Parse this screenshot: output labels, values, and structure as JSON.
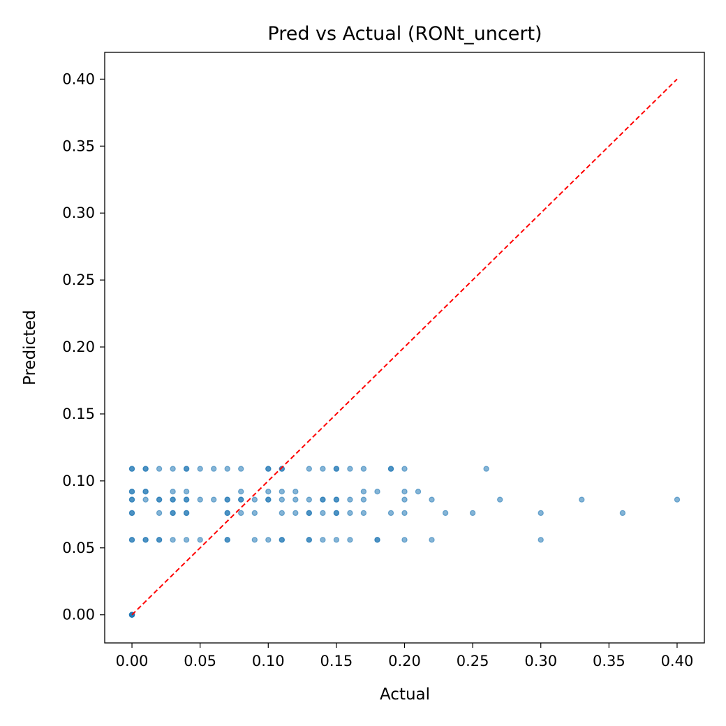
{
  "chart_data": {
    "type": "scatter",
    "title": "Pred vs Actual (RONt_uncert)",
    "xlabel": "Actual",
    "ylabel": "Predicted",
    "xlim": [
      -0.02,
      0.42
    ],
    "ylim": [
      -0.021,
      0.42
    ],
    "xticks": [
      "0.00",
      "0.05",
      "0.10",
      "0.15",
      "0.20",
      "0.25",
      "0.30",
      "0.35",
      "0.40"
    ],
    "yticks": [
      "0.00",
      "0.05",
      "0.10",
      "0.15",
      "0.20",
      "0.25",
      "0.30",
      "0.35",
      "0.40"
    ],
    "point_color": "#1f77b4",
    "reference_line": {
      "from": [
        0,
        0
      ],
      "to": [
        0.4,
        0.4
      ],
      "color": "#ff0000",
      "style": "dashed"
    },
    "grid": false,
    "series": [
      {
        "points": [
          [
            0.0,
            0.0
          ],
          [
            0.0,
            0.0
          ],
          [
            0.0,
            0.0
          ],
          [
            0.0,
            0.0
          ],
          [
            0.0,
            0.0
          ],
          [
            0.0,
            0.056
          ],
          [
            0.0,
            0.056
          ],
          [
            0.0,
            0.076
          ],
          [
            0.0,
            0.076
          ],
          [
            0.0,
            0.086
          ],
          [
            0.0,
            0.086
          ],
          [
            0.0,
            0.092
          ],
          [
            0.0,
            0.092
          ],
          [
            0.0,
            0.109
          ],
          [
            0.0,
            0.109
          ],
          [
            0.01,
            0.056
          ],
          [
            0.01,
            0.056
          ],
          [
            0.01,
            0.086
          ],
          [
            0.01,
            0.092
          ],
          [
            0.01,
            0.092
          ],
          [
            0.01,
            0.109
          ],
          [
            0.01,
            0.109
          ],
          [
            0.02,
            0.056
          ],
          [
            0.02,
            0.056
          ],
          [
            0.02,
            0.076
          ],
          [
            0.02,
            0.086
          ],
          [
            0.02,
            0.086
          ],
          [
            0.02,
            0.109
          ],
          [
            0.03,
            0.056
          ],
          [
            0.03,
            0.076
          ],
          [
            0.03,
            0.076
          ],
          [
            0.03,
            0.086
          ],
          [
            0.03,
            0.086
          ],
          [
            0.03,
            0.092
          ],
          [
            0.03,
            0.109
          ],
          [
            0.04,
            0.056
          ],
          [
            0.04,
            0.076
          ],
          [
            0.04,
            0.076
          ],
          [
            0.04,
            0.086
          ],
          [
            0.04,
            0.086
          ],
          [
            0.04,
            0.092
          ],
          [
            0.04,
            0.109
          ],
          [
            0.04,
            0.109
          ],
          [
            0.05,
            0.056
          ],
          [
            0.05,
            0.086
          ],
          [
            0.05,
            0.109
          ],
          [
            0.06,
            0.086
          ],
          [
            0.06,
            0.109
          ],
          [
            0.07,
            0.056
          ],
          [
            0.07,
            0.056
          ],
          [
            0.07,
            0.076
          ],
          [
            0.07,
            0.076
          ],
          [
            0.07,
            0.086
          ],
          [
            0.07,
            0.086
          ],
          [
            0.07,
            0.109
          ],
          [
            0.08,
            0.076
          ],
          [
            0.08,
            0.086
          ],
          [
            0.08,
            0.086
          ],
          [
            0.08,
            0.092
          ],
          [
            0.08,
            0.109
          ],
          [
            0.09,
            0.056
          ],
          [
            0.09,
            0.076
          ],
          [
            0.09,
            0.086
          ],
          [
            0.1,
            0.056
          ],
          [
            0.1,
            0.086
          ],
          [
            0.1,
            0.086
          ],
          [
            0.1,
            0.092
          ],
          [
            0.1,
            0.109
          ],
          [
            0.1,
            0.109
          ],
          [
            0.11,
            0.056
          ],
          [
            0.11,
            0.056
          ],
          [
            0.11,
            0.076
          ],
          [
            0.11,
            0.086
          ],
          [
            0.11,
            0.092
          ],
          [
            0.11,
            0.109
          ],
          [
            0.11,
            0.109
          ],
          [
            0.12,
            0.076
          ],
          [
            0.12,
            0.086
          ],
          [
            0.12,
            0.092
          ],
          [
            0.13,
            0.056
          ],
          [
            0.13,
            0.056
          ],
          [
            0.13,
            0.076
          ],
          [
            0.13,
            0.076
          ],
          [
            0.13,
            0.086
          ],
          [
            0.13,
            0.109
          ],
          [
            0.14,
            0.056
          ],
          [
            0.14,
            0.076
          ],
          [
            0.14,
            0.086
          ],
          [
            0.14,
            0.086
          ],
          [
            0.14,
            0.109
          ],
          [
            0.15,
            0.056
          ],
          [
            0.15,
            0.076
          ],
          [
            0.15,
            0.076
          ],
          [
            0.15,
            0.086
          ],
          [
            0.15,
            0.086
          ],
          [
            0.15,
            0.109
          ],
          [
            0.15,
            0.109
          ],
          [
            0.16,
            0.056
          ],
          [
            0.16,
            0.076
          ],
          [
            0.16,
            0.086
          ],
          [
            0.16,
            0.109
          ],
          [
            0.17,
            0.076
          ],
          [
            0.17,
            0.086
          ],
          [
            0.17,
            0.092
          ],
          [
            0.17,
            0.109
          ],
          [
            0.18,
            0.056
          ],
          [
            0.18,
            0.056
          ],
          [
            0.18,
            0.092
          ],
          [
            0.19,
            0.076
          ],
          [
            0.19,
            0.109
          ],
          [
            0.19,
            0.109
          ],
          [
            0.2,
            0.056
          ],
          [
            0.2,
            0.076
          ],
          [
            0.2,
            0.086
          ],
          [
            0.2,
            0.092
          ],
          [
            0.2,
            0.109
          ],
          [
            0.21,
            0.092
          ],
          [
            0.22,
            0.056
          ],
          [
            0.22,
            0.086
          ],
          [
            0.23,
            0.076
          ],
          [
            0.25,
            0.076
          ],
          [
            0.26,
            0.109
          ],
          [
            0.27,
            0.086
          ],
          [
            0.3,
            0.056
          ],
          [
            0.3,
            0.076
          ],
          [
            0.33,
            0.086
          ],
          [
            0.36,
            0.076
          ],
          [
            0.4,
            0.086
          ]
        ]
      }
    ]
  }
}
